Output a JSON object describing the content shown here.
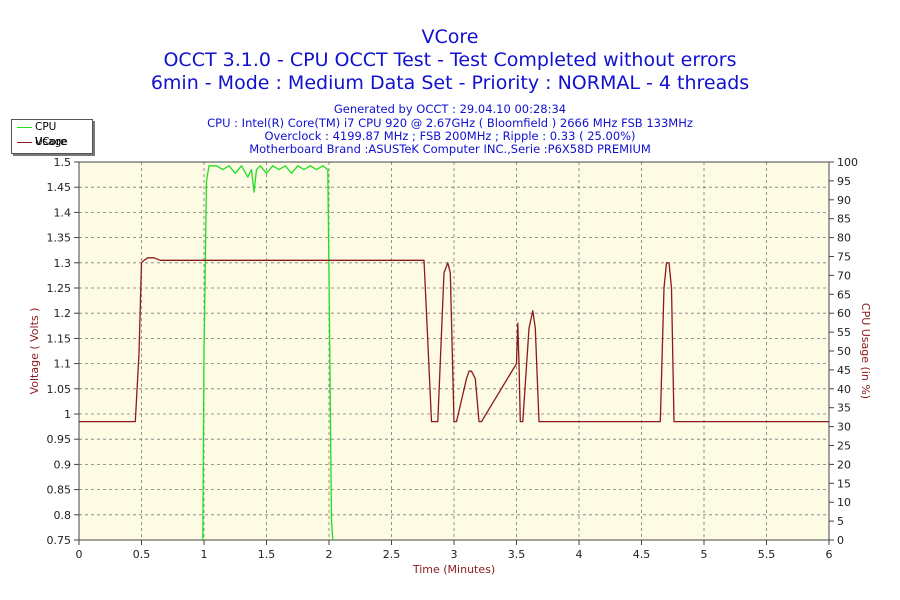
{
  "header": {
    "title": "VCore",
    "subtitle1": "OCCT 3.1.0 - CPU OCCT Test - Test Completed without errors",
    "subtitle2": "6min - Mode : Medium Data Set - Priority : NORMAL - 4 threads",
    "info": [
      "Generated by OCCT : 29.04.10 00:28:34",
      "CPU : Intel(R) Core(TM) i7 CPU 920 @ 2.67GHz ( Bloomfield ) 2666 MHz FSB 133MHz",
      "Overclock : 4199.87 MHz ; FSB 200MHz ; Ripple : 0.33 ( 25.00%)",
      "Motherboard Brand :ASUSTeK Computer INC.,Serie :P6X58D PREMIUM"
    ]
  },
  "colors": {
    "title": "#1010d0",
    "axis_label": "#8b1a1a",
    "plot_bg": "#fdfbe4",
    "vcore": "#8b1a1a",
    "cpu_usage": "#22dd22"
  },
  "chart_data": {
    "type": "line",
    "title": "VCore",
    "xlabel": "Time (Minutes)",
    "ylabel": "Voltage ( Volts )",
    "y2label": "CPU Usage (in %)",
    "xlim": [
      0,
      6
    ],
    "ylim": [
      0.75,
      1.5
    ],
    "y2lim": [
      0,
      100
    ],
    "grid": true,
    "legend_position": "top-left",
    "x_ticks": [
      "0",
      "0.5",
      "1",
      "1.5",
      "2",
      "2.5",
      "3",
      "3.5",
      "4",
      "4.5",
      "5",
      "5.5",
      "6"
    ],
    "y_ticks": [
      "0.75",
      "0.8",
      "0.85",
      "0.9",
      "0.95",
      "1",
      "1.05",
      "1.1",
      "1.15",
      "1.2",
      "1.25",
      "1.3",
      "1.35",
      "1.4",
      "1.45",
      "1.5"
    ],
    "y2_ticks": [
      "0",
      "5",
      "10",
      "15",
      "20",
      "25",
      "30",
      "35",
      "40",
      "45",
      "50",
      "55",
      "60",
      "65",
      "70",
      "75",
      "80",
      "85",
      "90",
      "95",
      "100"
    ],
    "series": [
      {
        "name": "CPU Usage",
        "axis": "right",
        "x": [
          0.99,
          1.0,
          1.02,
          1.04,
          1.06,
          1.1,
          1.15,
          1.2,
          1.25,
          1.3,
          1.35,
          1.38,
          1.4,
          1.42,
          1.45,
          1.5,
          1.55,
          1.6,
          1.65,
          1.7,
          1.75,
          1.8,
          1.85,
          1.9,
          1.95,
          1.99,
          2.0,
          2.02,
          2.03
        ],
        "y": [
          0,
          50,
          95,
          99,
          99,
          99,
          98,
          99,
          97,
          99,
          96,
          98,
          92,
          98,
          99,
          97,
          99,
          98,
          99,
          97,
          99,
          98,
          99,
          98,
          99,
          98,
          70,
          5,
          0
        ]
      },
      {
        "name": "VCore",
        "axis": "left",
        "x": [
          0,
          0.45,
          0.48,
          0.5,
          0.52,
          0.55,
          0.6,
          0.65,
          0.7,
          1.0,
          1.5,
          2.0,
          2.5,
          2.76,
          2.78,
          2.82,
          2.87,
          2.92,
          2.95,
          2.97,
          3.0,
          3.02,
          3.1,
          3.12,
          3.14,
          3.17,
          3.2,
          3.22,
          3.5,
          3.51,
          3.52,
          3.53,
          3.55,
          3.6,
          3.63,
          3.65,
          3.68,
          3.7,
          4.65,
          4.68,
          4.7,
          4.72,
          4.74,
          4.76,
          6.0
        ],
        "y": [
          0.985,
          0.985,
          1.12,
          1.3,
          1.305,
          1.31,
          1.31,
          1.305,
          1.305,
          1.305,
          1.305,
          1.305,
          1.305,
          1.305,
          1.2,
          0.985,
          0.985,
          1.28,
          1.3,
          1.28,
          0.985,
          0.985,
          1.07,
          1.085,
          1.085,
          1.07,
          0.985,
          0.985,
          1.1,
          1.18,
          1.1,
          0.985,
          0.985,
          1.17,
          1.205,
          1.17,
          0.985,
          0.985,
          0.985,
          1.25,
          1.3,
          1.3,
          1.25,
          0.985,
          0.985
        ]
      }
    ]
  }
}
